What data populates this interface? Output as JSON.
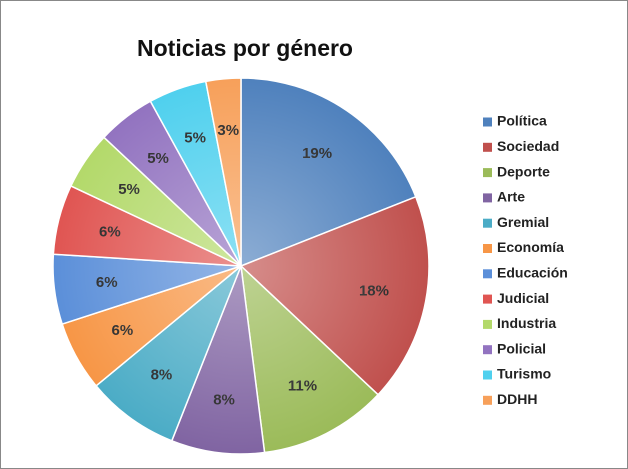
{
  "chart_data": {
    "type": "pie",
    "title": "Noticias por género",
    "categories": [
      "Política",
      "Sociedad",
      "Deporte",
      "Arte",
      "Gremial",
      "Economía",
      "Educación",
      "Judicial",
      "Industria",
      "Policial",
      "Turismo",
      "DDHH"
    ],
    "values": [
      19,
      18,
      11,
      8,
      8,
      6,
      6,
      6,
      5,
      5,
      5,
      3
    ],
    "value_labels": [
      "19%",
      "18%",
      "11%",
      "8%",
      "8%",
      "6%",
      "6%",
      "6%",
      "5%",
      "5%",
      "5%",
      "3%"
    ],
    "colors": [
      "#4f81bd",
      "#c0504d",
      "#9bbb59",
      "#8064a2",
      "#4bacc6",
      "#f79646",
      "#5b8fd9",
      "#e05552",
      "#b3d96a",
      "#9273c0",
      "#4fd0ee",
      "#f7a05a"
    ],
    "legend": "right"
  }
}
